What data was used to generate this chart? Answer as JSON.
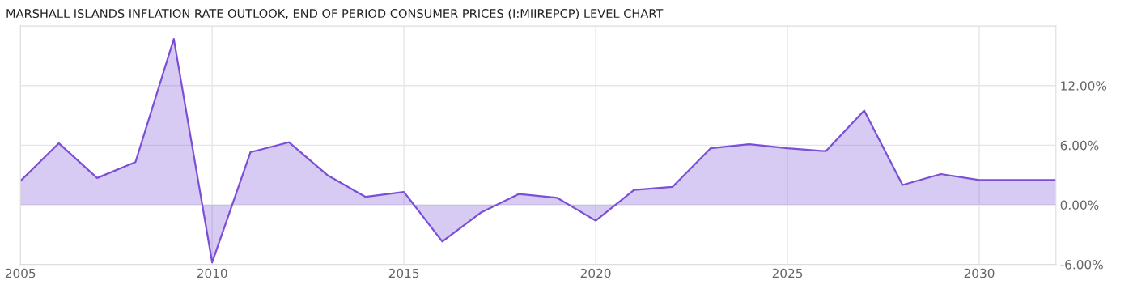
{
  "chart_data": {
    "type": "area",
    "title": "MARSHALL ISLANDS INFLATION RATE OUTLOOK, END OF PERIOD CONSUMER PRICES (I:MIIREPCP) LEVEL CHART",
    "x": [
      2005,
      2006,
      2007,
      2008,
      2009,
      2010,
      2011,
      2012,
      2013,
      2014,
      2015,
      2016,
      2017,
      2018,
      2019,
      2020,
      2021,
      2022,
      2023,
      2024,
      2025,
      2026,
      2027,
      2028,
      2029,
      2030,
      2031,
      2032
    ],
    "series": [
      {
        "color": "#7b4fd6",
        "values": [
          2.4,
          6.2,
          2.7,
          4.3,
          16.7,
          -5.8,
          5.3,
          6.3,
          3.0,
          0.8,
          1.3,
          -3.7,
          -0.8,
          1.1,
          0.7,
          -1.6,
          1.5,
          1.8,
          5.7,
          6.1,
          5.7,
          5.4,
          9.5,
          2.0,
          3.1,
          2.5,
          2.5,
          2.5
        ]
      }
    ],
    "xlim": [
      2005,
      2032
    ],
    "xticks": [
      2005,
      2010,
      2015,
      2020,
      2025,
      2030
    ],
    "ylim": [
      -6,
      18
    ],
    "yticks": [
      {
        "value": -6,
        "label": "-6.00%"
      },
      {
        "value": 0,
        "label": "0.00%"
      },
      {
        "value": 6,
        "label": "6.00%"
      },
      {
        "value": 12,
        "label": "12.00%"
      }
    ],
    "grid": true,
    "legend": false
  }
}
